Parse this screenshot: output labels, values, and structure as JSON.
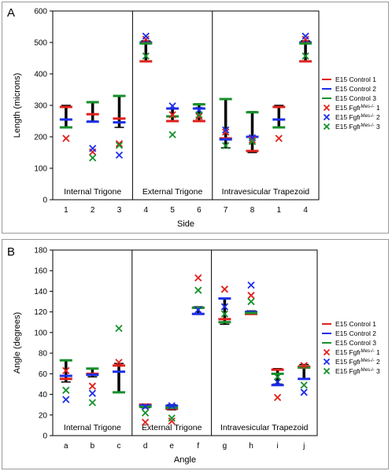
{
  "colors": {
    "control_1": "#e0201b",
    "control_2": "#1c2fe8",
    "control_3": "#16902b",
    "range_bar": "#000000",
    "frame": "#000000",
    "border": "#9a9a9a"
  },
  "chart_data": [
    {
      "type": "scatter",
      "panel_label": "A",
      "xlabel": "Side",
      "ylabel": "Length (microns)",
      "ylim": [
        0,
        600
      ],
      "yticks": [
        0,
        100,
        200,
        300,
        400,
        500,
        600
      ],
      "grid": false,
      "legend_position": "right",
      "categories": [
        "1",
        "2",
        "3",
        "4",
        "5",
        "6",
        "7",
        "8",
        "1",
        "4"
      ],
      "groups": [
        {
          "label": "Internal Trigone",
          "count": 3
        },
        {
          "label": "External Trigone",
          "count": 3
        },
        {
          "label": "Intravesicular Trapezoid",
          "count": 4
        }
      ],
      "range_bars": [
        [
          230,
          300
        ],
        [
          250,
          312
        ],
        [
          230,
          330
        ],
        [
          440,
          505
        ],
        [
          250,
          290
        ],
        [
          250,
          305
        ],
        [
          165,
          320
        ],
        [
          150,
          280
        ],
        [
          230,
          300
        ],
        [
          440,
          505
        ]
      ],
      "series": [
        {
          "name": "E15 Control 1",
          "marker": "dash",
          "color": "#e0201b",
          "values": [
            295,
            272,
            258,
            440,
            250,
            250,
            195,
            155,
            295,
            440
          ]
        },
        {
          "name": "E15 Control 2",
          "marker": "dash",
          "color": "#1c2fe8",
          "values": [
            255,
            248,
            246,
            500,
            290,
            290,
            192,
            200,
            255,
            500
          ]
        },
        {
          "name": "E15 Control 3",
          "marker": "dash",
          "color": "#16902b",
          "values": [
            230,
            310,
            330,
            497,
            265,
            303,
            320,
            278,
            230,
            497
          ]
        },
        {
          "name": "E15 Fgfr",
          "name_superscript": "Mes-/-",
          "name_suffix": " 1",
          "marker": "x",
          "color": "#e0201b",
          "values": [
            195,
            152,
            178,
            510,
            270,
            265,
            215,
            190,
            195,
            510
          ]
        },
        {
          "name": "E15 Fgfr",
          "name_superscript": "Mes-/-",
          "name_suffix": " 2",
          "marker": "x",
          "color": "#1c2fe8",
          "values": [
            null,
            163,
            142,
            520,
            298,
            285,
            222,
            197,
            null,
            520
          ]
        },
        {
          "name": "E15 Fgfr",
          "name_superscript": "Mes-/-",
          "name_suffix": " 3",
          "marker": "x",
          "color": "#16902b",
          "values": [
            null,
            133,
            173,
            457,
            207,
            270,
            172,
            185,
            null,
            457
          ]
        }
      ]
    },
    {
      "type": "scatter",
      "panel_label": "B",
      "xlabel": "Angle",
      "ylabel": "Angle (degrees)",
      "ylim": [
        0,
        180
      ],
      "yticks": [
        0,
        20,
        40,
        60,
        80,
        100,
        120,
        140,
        160,
        180
      ],
      "grid": false,
      "legend_position": "right",
      "categories": [
        "a",
        "b",
        "c",
        "d",
        "e",
        "f",
        "g",
        "h",
        "i",
        "j"
      ],
      "groups": [
        {
          "label": "Internal Trigone",
          "count": 3
        },
        {
          "label": "External Trigone",
          "count": 3
        },
        {
          "label": "Intravesicular Trapezoid",
          "count": 4
        }
      ],
      "range_bars": [
        [
          52,
          73
        ],
        [
          57,
          65
        ],
        [
          42,
          70
        ],
        [
          27,
          30
        ],
        [
          25,
          30
        ],
        [
          118,
          125
        ],
        [
          108,
          133
        ],
        [
          118,
          121
        ],
        [
          50,
          65
        ],
        [
          55,
          69
        ]
      ],
      "series": [
        {
          "name": "E15 Control 1",
          "marker": "dash",
          "color": "#e0201b",
          "values": [
            55,
            60,
            68,
            30,
            26,
            124,
            113,
            118,
            64,
            67
          ]
        },
        {
          "name": "E15 Control 2",
          "marker": "dash",
          "color": "#1c2fe8",
          "values": [
            58,
            59,
            62,
            29,
            29,
            118,
            133,
            120,
            49,
            55
          ]
        },
        {
          "name": "E15 Control 3",
          "marker": "dash",
          "color": "#16902b",
          "values": [
            73,
            65,
            42,
            28,
            27,
            124,
            110,
            119,
            60,
            66
          ]
        },
        {
          "name": "E15 Fgfr",
          "name_superscript": "Mes-/-",
          "name_suffix": " 1",
          "marker": "x",
          "color": "#e0201b",
          "values": [
            63,
            48,
            71,
            13,
            14,
            153,
            142,
            136,
            37,
            68
          ]
        },
        {
          "name": "E15 Fgfr",
          "name_superscript": "Mes-/-",
          "name_suffix": " 2",
          "marker": "x",
          "color": "#1c2fe8",
          "values": [
            35,
            41,
            null,
            28,
            29,
            122,
            125,
            146,
            52,
            42
          ]
        },
        {
          "name": "E15 Fgfr",
          "name_superscript": "Mes-/-",
          "name_suffix": " 3",
          "marker": "x",
          "color": "#16902b",
          "values": [
            44,
            32,
            104,
            22,
            17,
            141,
            118,
            130,
            57,
            49
          ]
        }
      ]
    }
  ]
}
